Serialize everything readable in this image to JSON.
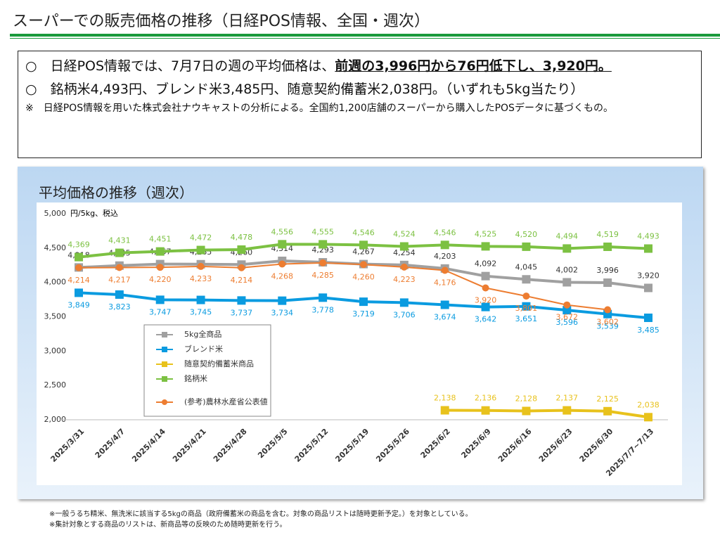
{
  "header": {
    "title": "スーパーでの販売価格の推移（日経POS情報、全国・週次）"
  },
  "summary": {
    "bullet1": "○　日経POS情報では、7月7日の週の平均価格は、",
    "bullet1_emphasis": "前週の3,996円から76円低下し、3,920円。",
    "bullet2": "○　銘柄米4,493円、ブレンド米3,485円、随意契約備蓄米2,038円。（いずれも5kg当たり）",
    "note": "※　日経POS情報を用いた株式会社ナウキャストの分析による。全国約1,200店舗のスーパーから購入したPOSデータに基づくもの。"
  },
  "chart_data": {
    "type": "line",
    "title": "平均価格の推移（週次）",
    "ylabel": "円/5kg、税込",
    "categories": [
      "2025/3/31",
      "2025/4/7",
      "2025/4/14",
      "2025/4/21",
      "2025/4/28",
      "2025/5/5",
      "2025/5/12",
      "2025/5/19",
      "2025/5/26",
      "2025/6/2",
      "2025/6/9",
      "2025/6/16",
      "2025/6/23",
      "2025/6/30",
      "2025/7/7~7/13"
    ],
    "ylim": [
      2000,
      5000
    ],
    "yticks": [
      {
        "value": 2000,
        "label": "2,000"
      },
      {
        "value": 2500,
        "label": "2,500"
      },
      {
        "value": 3000,
        "label": "3,000"
      },
      {
        "value": 3500,
        "label": "3,500"
      },
      {
        "value": 4000,
        "label": "4,000"
      },
      {
        "value": 4500,
        "label": "4,500"
      },
      {
        "value": 5000,
        "label": "5,000"
      }
    ],
    "series": [
      {
        "name": "5kg全商品",
        "color": "#a0a0a0",
        "marker": "square",
        "label_position": "above",
        "values": [
          4218,
          4245,
          4267,
          4265,
          4260,
          4314,
          4293,
          4267,
          4254,
          4203,
          4092,
          4045,
          4002,
          3996,
          3920
        ],
        "value_labels": [
          "4,218",
          "4,245",
          "4,267",
          "4,265",
          "4,260",
          "4,314",
          "4,293",
          "4,267",
          "4,254",
          "4,203",
          "4,092",
          "4,045",
          "4,002",
          "3,996",
          "3,920"
        ]
      },
      {
        "name": "ブレンド米",
        "color": "#0a9be0",
        "marker": "square",
        "label_position": "below",
        "values": [
          3849,
          3823,
          3747,
          3745,
          3737,
          3734,
          3778,
          3719,
          3706,
          3674,
          3642,
          3651,
          3596,
          3539,
          3485
        ],
        "value_labels": [
          "3,849",
          "3,823",
          "3,747",
          "3,745",
          "3,737",
          "3,734",
          "3,778",
          "3,719",
          "3,706",
          "3,674",
          "3,642",
          "3,651",
          "3,596",
          "3,539",
          "3,485"
        ]
      },
      {
        "name": "随意契約備蓄米商品",
        "color": "#e8c21c",
        "marker": "square",
        "label_position": "above",
        "values": [
          null,
          null,
          null,
          null,
          null,
          null,
          null,
          null,
          null,
          2138,
          2136,
          2128,
          2137,
          2125,
          2038
        ],
        "value_labels": [
          null,
          null,
          null,
          null,
          null,
          null,
          null,
          null,
          null,
          "2,138",
          "2,136",
          "2,128",
          "2,137",
          "2,125",
          "2,038"
        ]
      },
      {
        "name": "銘柄米",
        "color": "#7cc142",
        "marker": "square",
        "label_position": "above",
        "values": [
          4369,
          4431,
          4451,
          4472,
          4478,
          4556,
          4555,
          4546,
          4524,
          4546,
          4525,
          4520,
          4494,
          4519,
          4493
        ],
        "value_labels": [
          "4,369",
          "4,431",
          "4,451",
          "4,472",
          "4,478",
          "4,556",
          "4,555",
          "4,546",
          "4,524",
          "4,546",
          "4,525",
          "4,520",
          "4,494",
          "4,519",
          "4,493"
        ]
      },
      {
        "name": "(参考)農林水産省公表値",
        "color": "#ed7d31",
        "marker": "circle",
        "label_position": "below",
        "values": [
          4214,
          4217,
          4220,
          4233,
          4214,
          4268,
          4285,
          4260,
          4223,
          4176,
          3920,
          3801,
          3672,
          3602,
          null
        ],
        "value_labels": [
          "4,214",
          "4,217",
          "4,220",
          "4,233",
          "4,214",
          "4,268",
          "4,285",
          "4,260",
          "4,223",
          "4,176",
          "3,920",
          "3,801",
          "3,672",
          "3,602",
          null
        ]
      }
    ]
  },
  "footnotes": [
    "※一般うるち精米、無洗米に該当する5kgの商品（政府備蓄米の商品を含む。対象の商品リストは随時更新予定。）を対象としている。",
    "※集計対象とする商品のリストは、新商品等の反映のため随時更新を行う。"
  ]
}
